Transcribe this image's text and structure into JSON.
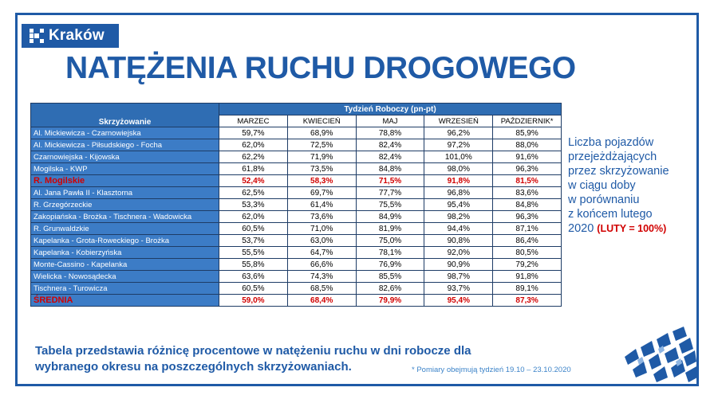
{
  "logo": {
    "text": "Kraków"
  },
  "title": "NATĘŻENIA RUCHU DROGOWEGO",
  "table": {
    "corner_header": "Skrzyżowanie",
    "group_header": "Tydzień Roboczy (pn-pt)",
    "months": [
      "MARZEC",
      "KWIECIEŃ",
      "MAJ",
      "WRZESIEŃ",
      "PAŹDZIERNIK*"
    ],
    "rows": [
      {
        "name": "Al. Mickiewicza - Czarnowiejska",
        "values": [
          "59,7%",
          "68,9%",
          "78,8%",
          "96,2%",
          "85,9%"
        ]
      },
      {
        "name": "Al. Mickiewicza - Piłsudskiego - Focha",
        "values": [
          "62,0%",
          "72,5%",
          "82,4%",
          "97,2%",
          "88,0%"
        ]
      },
      {
        "name": "Czarnowiejska - Kijowska",
        "values": [
          "62,2%",
          "71,9%",
          "82,4%",
          "101,0%",
          "91,6%"
        ]
      },
      {
        "name": "Mogilska - KWP",
        "values": [
          "61,8%",
          "73,5%",
          "84,8%",
          "98,0%",
          "96,3%"
        ]
      },
      {
        "name": "R. Mogilskie",
        "values": [
          "52,4%",
          "58,3%",
          "71,5%",
          "91,8%",
          "81,5%"
        ],
        "highlight": true
      },
      {
        "name": "Al. Jana Pawła II - Klasztorna",
        "values": [
          "62,5%",
          "69,7%",
          "77,7%",
          "96,8%",
          "83,6%"
        ]
      },
      {
        "name": "R. Grzegórzeckie",
        "values": [
          "53,3%",
          "61,4%",
          "75,5%",
          "95,4%",
          "84,8%"
        ]
      },
      {
        "name": "Zakopiańska - Brożka - Tischnera - Wadowicka",
        "values": [
          "62,0%",
          "73,6%",
          "84,9%",
          "98,2%",
          "96,3%"
        ]
      },
      {
        "name": "R. Grunwaldzkie",
        "values": [
          "60,5%",
          "71,0%",
          "81,9%",
          "94,4%",
          "87,1%"
        ]
      },
      {
        "name": "Kapelanka - Grota-Roweckiego - Brożka",
        "values": [
          "53,7%",
          "63,0%",
          "75,0%",
          "90,8%",
          "86,4%"
        ]
      },
      {
        "name": "Kapelanka - Kobierzyńska",
        "values": [
          "55,5%",
          "64,7%",
          "78,1%",
          "92,0%",
          "80,5%"
        ]
      },
      {
        "name": "Monte-Cassino - Kapelanka",
        "values": [
          "55,8%",
          "66,6%",
          "76,9%",
          "90,9%",
          "79,2%"
        ]
      },
      {
        "name": "Wielicka - Nowosądecka",
        "values": [
          "63,6%",
          "74,3%",
          "85,5%",
          "98,7%",
          "91,8%"
        ]
      },
      {
        "name": "Tischnera - Turowicza",
        "values": [
          "60,5%",
          "68,5%",
          "82,6%",
          "93,7%",
          "89,1%"
        ]
      },
      {
        "name": "ŚREDNIA",
        "values": [
          "59,0%",
          "68,4%",
          "79,9%",
          "95,4%",
          "87,3%"
        ],
        "highlight": true
      }
    ]
  },
  "side": {
    "lines": [
      "Liczba pojazdów",
      "przejeżdżających",
      "przez skrzyżowanie",
      "w ciągu doby",
      "w porównaniu",
      "z końcem lutego"
    ],
    "last_prefix": "2020",
    "last_emph": "(LUTY = 100%)"
  },
  "footer": {
    "line1": "Tabela przedstawia różnicę procentowe w natężeniu ruchu w dni robocze dla",
    "line2": "wybranego okresu na poszczególnych skrzyżowaniach."
  },
  "note": "* Pomiary obejmują tydzień 19.10 – 23.10.2020",
  "colors": {
    "brand": "#1f5aa6",
    "header": "#2f6db3",
    "row": "#3c7cc6",
    "highlight": "#d10000"
  }
}
